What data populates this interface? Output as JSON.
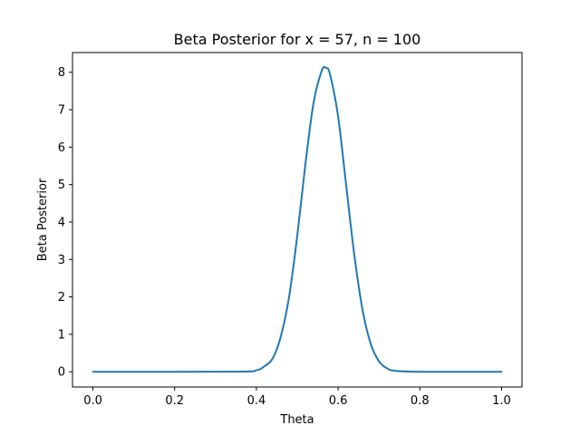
{
  "chart_data": {
    "type": "line",
    "title": "Beta Posterior for x = 57, n = 100",
    "xlabel": "Theta",
    "ylabel": "Beta Posterior",
    "xlim": [
      -0.05,
      1.05
    ],
    "ylim": [
      -0.406,
      8.526
    ],
    "xticks": [
      0.0,
      0.2,
      0.4,
      0.6,
      0.8,
      1.0
    ],
    "xtick_labels": [
      "0.0",
      "0.2",
      "0.4",
      "0.6",
      "0.8",
      "1.0"
    ],
    "yticks": [
      0,
      1,
      2,
      3,
      4,
      5,
      6,
      7,
      8
    ],
    "ytick_labels": [
      "0",
      "1",
      "2",
      "3",
      "4",
      "5",
      "6",
      "7",
      "8"
    ],
    "grid": false,
    "legend": "none",
    "colors": {
      "line": "#1f77b4"
    },
    "series": [
      {
        "x": [
          0.0,
          0.35,
          0.4,
          0.42,
          0.44,
          0.46,
          0.48,
          0.5,
          0.52,
          0.54,
          0.56,
          0.57,
          0.58,
          0.6,
          0.62,
          0.64,
          0.66,
          0.68,
          0.7,
          0.72,
          0.74,
          0.8,
          1.0
        ],
        "y": [
          0.0,
          0.003,
          0.04,
          0.15,
          0.36,
          0.95,
          2.0,
          3.63,
          5.55,
          7.19,
          8.04,
          8.12,
          7.95,
          6.82,
          4.95,
          3.09,
          1.64,
          0.74,
          0.28,
          0.09,
          0.025,
          0.001,
          0.0
        ]
      }
    ]
  }
}
